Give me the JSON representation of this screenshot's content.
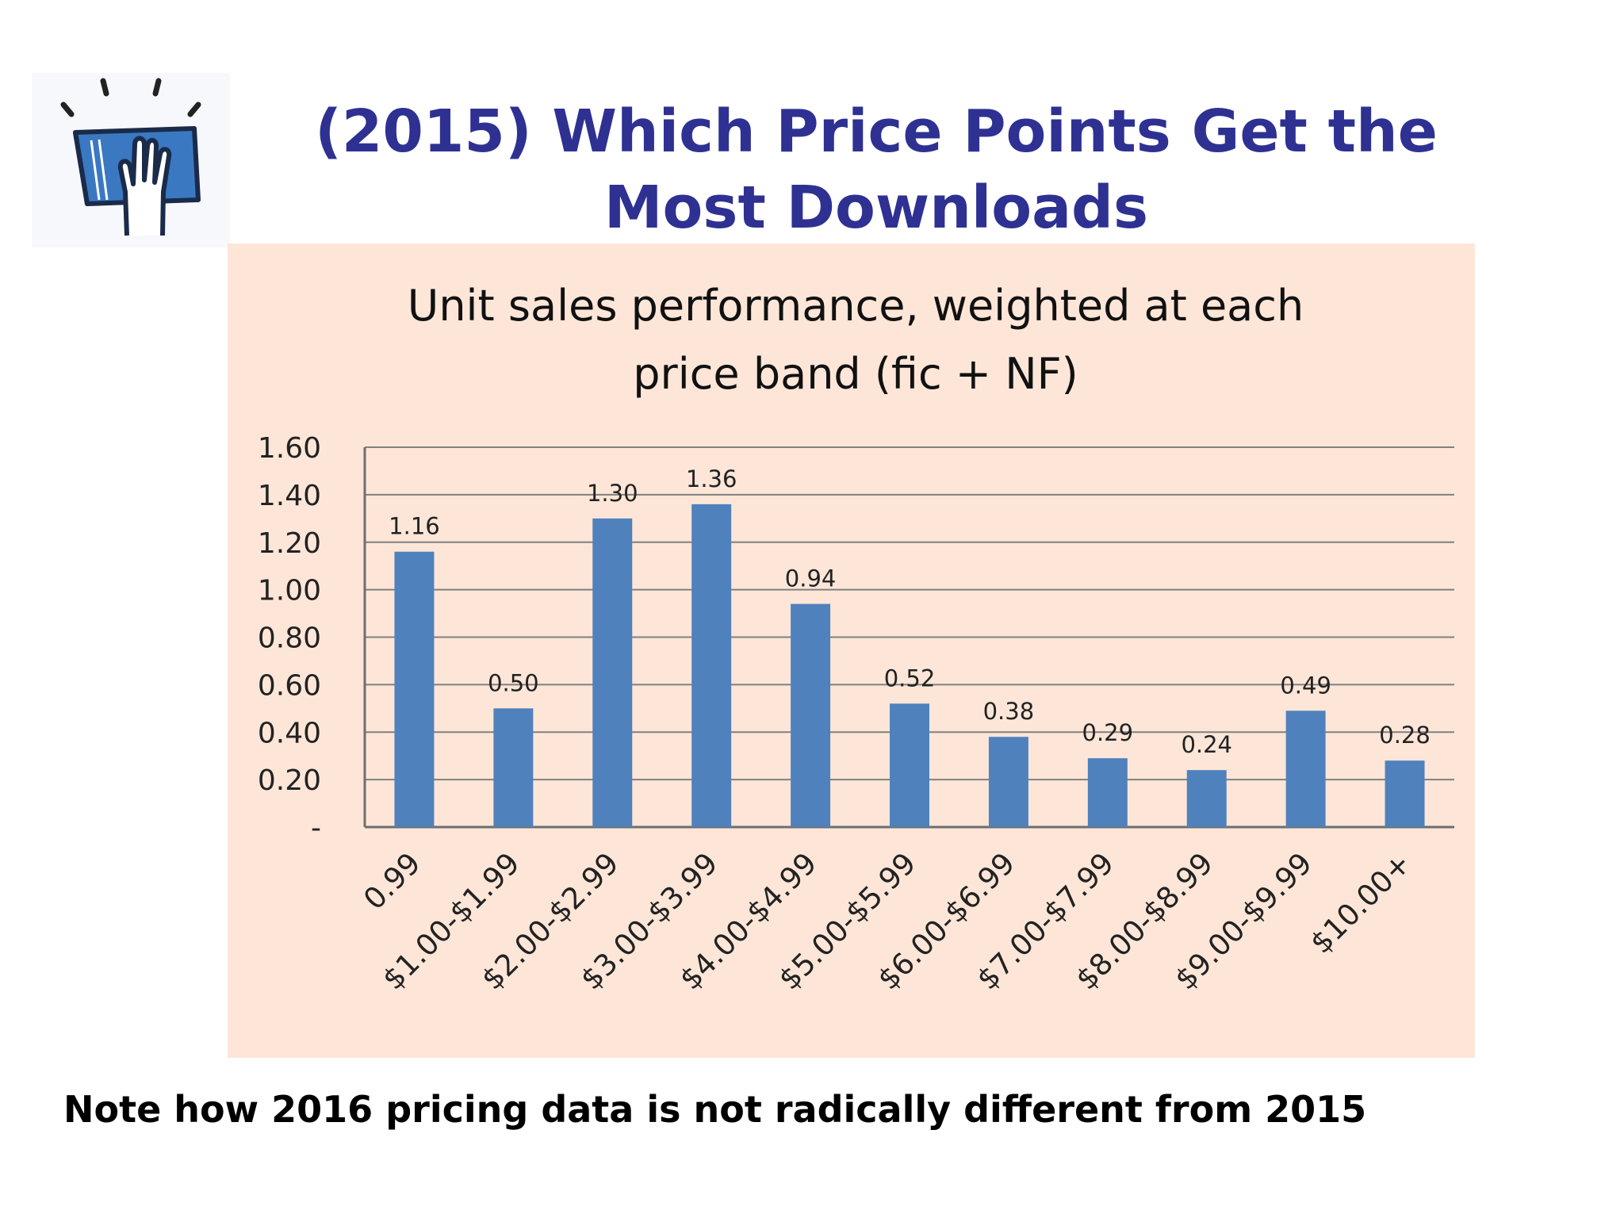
{
  "slide": {
    "title_line1": "(2015) Which Price Points Get the",
    "title_line2": "Most Downloads",
    "note": "Note how 2016 pricing data is not radically different from 2015",
    "logo_icon": "hand-on-book-icon"
  },
  "colors": {
    "title": "#2e3192",
    "bar": "#4f81bd",
    "chart_background": "#fde6d8",
    "gridline": "#808080"
  },
  "chart_data": {
    "type": "bar",
    "title_line1": "Unit sales performance, weighted at each",
    "title_line2": "price band (fic + NF)",
    "categories": [
      "0.99",
      "$1.00-$1.99",
      "$2.00-$2.99",
      "$3.00-$3.99",
      "$4.00-$4.99",
      "$5.00-$5.99",
      "$6.00-$6.99",
      "$7.00-$7.99",
      "$8.00-$8.99",
      "$9.00-$9.99",
      "$10.00+"
    ],
    "values": [
      1.16,
      0.5,
      1.3,
      1.36,
      0.94,
      0.52,
      0.38,
      0.29,
      0.24,
      0.49,
      0.28
    ],
    "data_labels": [
      "1.16",
      "0.50",
      "1.30",
      "1.36",
      "0.94",
      "0.52",
      "0.38",
      "0.29",
      "0.24",
      "0.49",
      "0.28"
    ],
    "ylim": [
      0,
      1.6
    ],
    "yticks": [
      0,
      0.2,
      0.4,
      0.6,
      0.8,
      1.0,
      1.2,
      1.4,
      1.6
    ],
    "ytick_labels": [
      "-",
      "0.20",
      "0.40",
      "0.60",
      "0.80",
      "1.00",
      "1.20",
      "1.40",
      "1.60"
    ],
    "xlabel": "",
    "ylabel": "",
    "grid": true,
    "legend": "none"
  }
}
